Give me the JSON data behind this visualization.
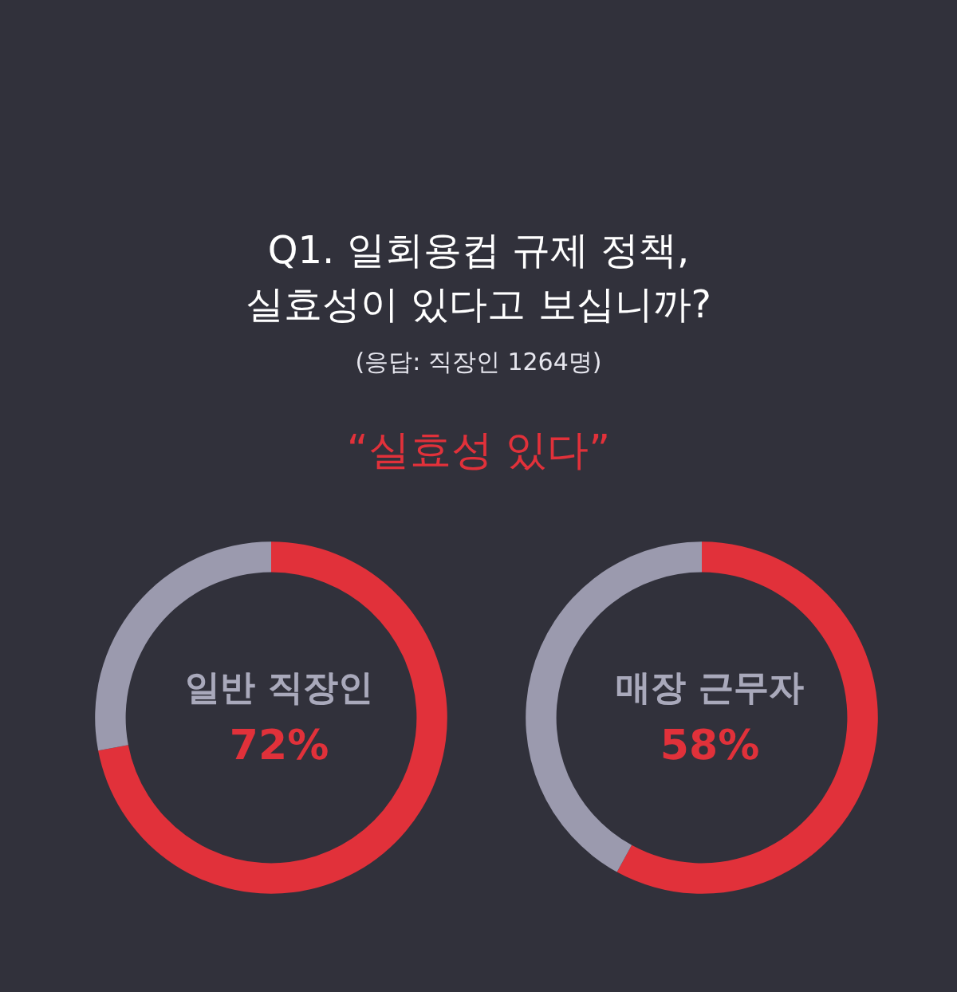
{
  "chart_data": [
    {
      "type": "other",
      "title": "Q1. 일회용컵 규제 정책,\n실효성이 있다고 보십니까?",
      "subtitle": "(응답: 직장인 1264명)",
      "annotations": [
        "“실효성 있다”"
      ]
    },
    {
      "type": "donut",
      "title": "일반 직장인\n72%",
      "categories": [
        null,
        null
      ],
      "values": [
        72,
        28
      ],
      "colors": [
        "#e1313a",
        "#9b9aae"
      ]
    },
    {
      "type": "donut",
      "title": "매장 근무자\n58%",
      "categories": [
        null,
        null
      ],
      "values": [
        58,
        42
      ],
      "colors": [
        "#e1313a",
        "#9b9aae"
      ]
    }
  ]
}
